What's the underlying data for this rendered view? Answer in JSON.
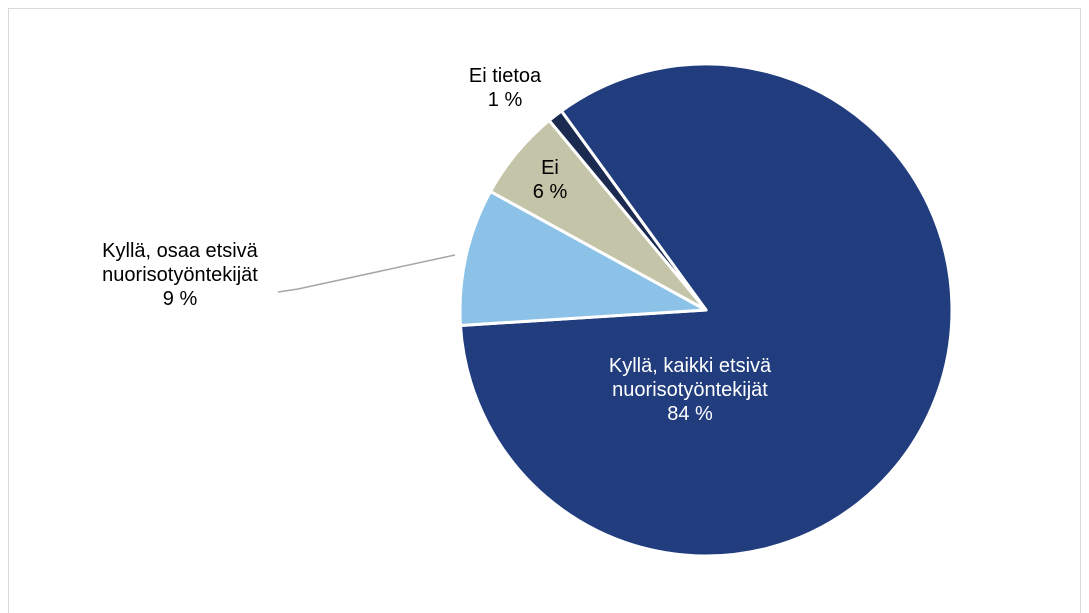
{
  "chart_data": {
    "type": "pie",
    "categories": [
      "Kyllä, kaikki etsivä nuorisotyöntekijät",
      "Kyllä, osaa etsivä nuorisotyöntekijät",
      "Ei",
      "Ei tietoa"
    ],
    "values": [
      84,
      9,
      6,
      1
    ],
    "value_labels": [
      "84 %",
      "9 %",
      "6 %",
      "1 %"
    ],
    "colors": [
      "#213d7e",
      "#8cc2e8",
      "#c4c4a8",
      "#1a2a50"
    ]
  }
}
